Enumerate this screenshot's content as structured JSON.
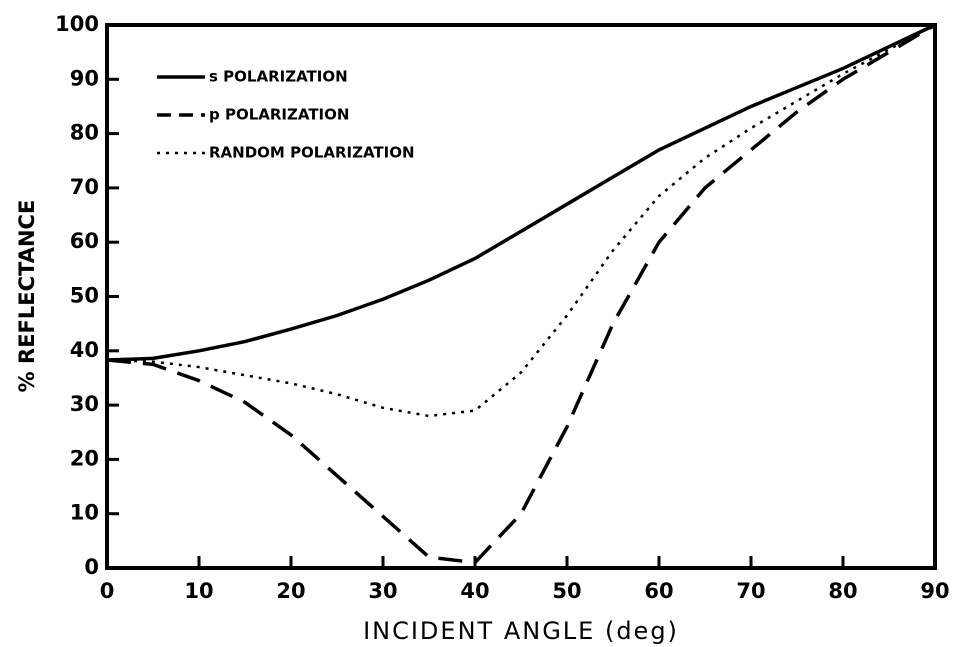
{
  "chart_data": {
    "type": "line",
    "ylabel": "% REFLECTANCE",
    "xlabel": "INCIDENT ANGLE (deg)",
    "x": [
      0,
      5,
      10,
      15,
      20,
      25,
      30,
      35,
      40,
      45,
      50,
      55,
      60,
      65,
      70,
      75,
      80,
      85,
      90
    ],
    "series": [
      {
        "name": "s POLARIZATION",
        "color": "#000000",
        "dash": "solid",
        "values": [
          38.3,
          38.6,
          40,
          41.7,
          44,
          46.5,
          49.5,
          53,
          57,
          62,
          67,
          72,
          77,
          81,
          85,
          88.5,
          92,
          96,
          100
        ]
      },
      {
        "name": "p POLARIZATION",
        "color": "#000000",
        "dash": "dashed",
        "values": [
          38.3,
          37.5,
          34.5,
          30.5,
          24.5,
          17,
          9.5,
          2,
          1,
          10,
          26,
          45,
          60,
          70,
          77,
          84,
          90,
          95,
          100
        ]
      },
      {
        "name": "RANDOM POLARIZATION",
        "color": "#000000",
        "dash": "dotted",
        "values": [
          38.3,
          38,
          37,
          35.5,
          34,
          32,
          29.5,
          28,
          29,
          36,
          46.5,
          58.5,
          68.5,
          75.5,
          81,
          86,
          91,
          95.5,
          100
        ]
      }
    ],
    "xlim": [
      0,
      90
    ],
    "xticks": [
      0,
      10,
      20,
      30,
      40,
      50,
      60,
      70,
      80,
      90
    ],
    "ylim": [
      0,
      100
    ],
    "yticks": [
      0,
      10,
      20,
      30,
      40,
      50,
      60,
      70,
      80,
      90,
      100
    ],
    "legend": "upper left"
  }
}
